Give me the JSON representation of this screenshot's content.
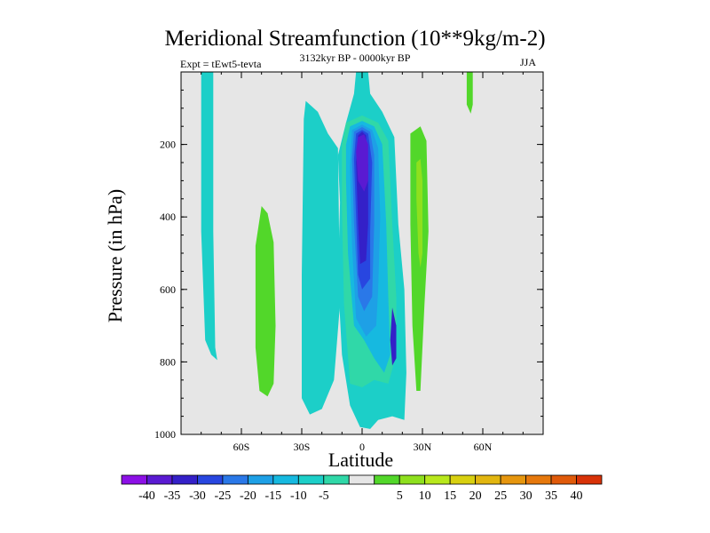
{
  "chart_data": {
    "type": "contour",
    "title": "Meridional Streamfunction (10**9kg/m-2)",
    "subtitle_left": "Expt = tEwt5-tevta",
    "subtitle_center": "3132kyr BP - 0000kyr BP",
    "subtitle_right": "JJA",
    "xlabel": "Latitude",
    "ylabel": "Pressure (in hPa)",
    "xlim": [
      -90,
      90
    ],
    "ylim": [
      1000,
      0
    ],
    "x_ticks": [
      {
        "value": -60,
        "label": "60S"
      },
      {
        "value": -30,
        "label": "30S"
      },
      {
        "value": 0,
        "label": "0"
      },
      {
        "value": 30,
        "label": "30N"
      },
      {
        "value": 60,
        "label": "60N"
      }
    ],
    "y_ticks": [
      {
        "value": 200,
        "label": "200"
      },
      {
        "value": 400,
        "label": "400"
      },
      {
        "value": 600,
        "label": "600"
      },
      {
        "value": 800,
        "label": "800"
      },
      {
        "value": 1000,
        "label": "1000"
      }
    ],
    "colorbar_levels": [
      "-40",
      "-35",
      "-30",
      "-25",
      "-20",
      "-15",
      "-10",
      "-5",
      "5",
      "10",
      "15",
      "20",
      "25",
      "30",
      "35",
      "40"
    ],
    "colorbar_colors": [
      "#8c10e6",
      "#5a1ad2",
      "#3420c8",
      "#2846e0",
      "#2a78e8",
      "#1ea0e6",
      "#16b9e0",
      "#1ccfc8",
      "#30d8a8",
      "#e6e6e6",
      "#52d72a",
      "#8ee01e",
      "#b8e81c",
      "#d8d010",
      "#e2b610",
      "#e6960e",
      "#e6780c",
      "#e05a0a",
      "#d83208"
    ],
    "background_color": "#e6e6e6",
    "regions": [
      {
        "level": "-5",
        "color": "#1ccfc8",
        "points": [
          [
            -80,
            0
          ],
          [
            -74,
            0
          ],
          [
            -74,
            440
          ],
          [
            -73,
            760
          ],
          [
            -72,
            795
          ],
          [
            -75,
            780
          ],
          [
            -78,
            740
          ],
          [
            -80,
            440
          ]
        ]
      },
      {
        "level": "5",
        "color": "#52d72a",
        "points": [
          [
            -50,
            370
          ],
          [
            -47,
            390
          ],
          [
            -44,
            470
          ],
          [
            -43,
            700
          ],
          [
            -44,
            860
          ],
          [
            -47,
            895
          ],
          [
            -51,
            880
          ],
          [
            -53,
            760
          ],
          [
            -53,
            480
          ]
        ]
      },
      {
        "level": "-5",
        "color": "#1ccfc8",
        "points": [
          [
            -28,
            80
          ],
          [
            -22,
            110
          ],
          [
            -17,
            170
          ],
          [
            -12,
            210
          ],
          [
            -11,
            640
          ],
          [
            -14,
            850
          ],
          [
            -20,
            930
          ],
          [
            -26,
            945
          ],
          [
            -30,
            900
          ],
          [
            -30,
            560
          ],
          [
            -29,
            130
          ]
        ]
      },
      {
        "level": "-5",
        "color": "#1ccfc8",
        "points": [
          [
            -3,
            0
          ],
          [
            3,
            0
          ],
          [
            4,
            60
          ],
          [
            10,
            110
          ],
          [
            16,
            180
          ],
          [
            18,
            420
          ],
          [
            21,
            600
          ],
          [
            22,
            830
          ],
          [
            21,
            960
          ],
          [
            15,
            950
          ],
          [
            8,
            960
          ],
          [
            4,
            985
          ],
          [
            -1,
            980
          ],
          [
            -6,
            920
          ],
          [
            -10,
            780
          ],
          [
            -12,
            570
          ],
          [
            -11,
            360
          ],
          [
            -12,
            230
          ],
          [
            -8,
            140
          ],
          [
            -4,
            60
          ]
        ]
      },
      {
        "level": "-10",
        "color": "#30d8a8",
        "points": [
          [
            -8,
            140
          ],
          [
            0,
            120
          ],
          [
            8,
            140
          ],
          [
            13,
            190
          ],
          [
            15,
            420
          ],
          [
            17,
            620
          ],
          [
            17,
            780
          ],
          [
            13,
            860
          ],
          [
            6,
            850
          ],
          [
            0,
            870
          ],
          [
            -6,
            860
          ],
          [
            -9,
            640
          ],
          [
            -10,
            380
          ],
          [
            -10,
            200
          ]
        ]
      },
      {
        "level": "-15",
        "color": "#16b9e0",
        "points": [
          [
            -6,
            150
          ],
          [
            0,
            135
          ],
          [
            6,
            150
          ],
          [
            10,
            200
          ],
          [
            12,
            420
          ],
          [
            13,
            620
          ],
          [
            14,
            780
          ],
          [
            11,
            830
          ],
          [
            6,
            790
          ],
          [
            1,
            740
          ],
          [
            -4,
            700
          ],
          [
            -7,
            500
          ],
          [
            -8,
            300
          ],
          [
            -8,
            200
          ]
        ]
      },
      {
        "level": "-20",
        "color": "#1ea0e6",
        "points": [
          [
            -5,
            160
          ],
          [
            0,
            145
          ],
          [
            5,
            160
          ],
          [
            8,
            210
          ],
          [
            9,
            400
          ],
          [
            8,
            600
          ],
          [
            7,
            700
          ],
          [
            2,
            730
          ],
          [
            -3,
            680
          ],
          [
            -5,
            480
          ],
          [
            -6,
            260
          ]
        ]
      },
      {
        "level": "-25",
        "color": "#2a78e8",
        "points": [
          [
            -4,
            165
          ],
          [
            0,
            152
          ],
          [
            4,
            165
          ],
          [
            6,
            230
          ],
          [
            6,
            420
          ],
          [
            5,
            620
          ],
          [
            1,
            660
          ],
          [
            -2,
            620
          ],
          [
            -4,
            420
          ],
          [
            -5,
            240
          ]
        ]
      },
      {
        "level": "-30",
        "color": "#2846e0",
        "points": [
          [
            -3,
            170
          ],
          [
            0,
            160
          ],
          [
            3,
            170
          ],
          [
            5,
            250
          ],
          [
            4,
            440
          ],
          [
            4,
            570
          ],
          [
            0,
            600
          ],
          [
            -2,
            560
          ],
          [
            -3,
            400
          ],
          [
            -4,
            240
          ]
        ]
      },
      {
        "level": "-35",
        "color": "#3420c8",
        "points": [
          [
            -2,
            175
          ],
          [
            0,
            165
          ],
          [
            2,
            175
          ],
          [
            3,
            260
          ],
          [
            3,
            420
          ],
          [
            2,
            520
          ],
          [
            -1,
            530
          ],
          [
            -2,
            420
          ],
          [
            -3,
            250
          ]
        ]
      },
      {
        "level": "-40",
        "color": "#5a1ad2",
        "points": [
          [
            -2,
            180
          ],
          [
            1,
            172
          ],
          [
            3,
            200
          ],
          [
            3,
            300
          ],
          [
            1,
            330
          ],
          [
            -2,
            300
          ],
          [
            -3,
            220
          ]
        ]
      },
      {
        "level": "-35",
        "color": "#3420c8",
        "points": [
          [
            15,
            650
          ],
          [
            17,
            700
          ],
          [
            17,
            790
          ],
          [
            15,
            810
          ],
          [
            14,
            740
          ]
        ]
      },
      {
        "level": "5",
        "color": "#52d72a",
        "points": [
          [
            24,
            170
          ],
          [
            29,
            150
          ],
          [
            32,
            190
          ],
          [
            33,
            440
          ],
          [
            31,
            640
          ],
          [
            30,
            760
          ],
          [
            29,
            880
          ],
          [
            27,
            880
          ],
          [
            25,
            700
          ],
          [
            24,
            420
          ]
        ]
      },
      {
        "level": "10",
        "color": "#8ee01e",
        "points": [
          [
            27,
            250
          ],
          [
            29,
            240
          ],
          [
            30,
            300
          ],
          [
            30,
            500
          ],
          [
            29,
            540
          ],
          [
            28,
            500
          ],
          [
            27,
            350
          ]
        ]
      },
      {
        "level": "5",
        "color": "#52d72a",
        "points": [
          [
            52,
            0
          ],
          [
            55,
            0
          ],
          [
            55,
            90
          ],
          [
            54,
            115
          ],
          [
            52,
            90
          ]
        ]
      }
    ]
  }
}
